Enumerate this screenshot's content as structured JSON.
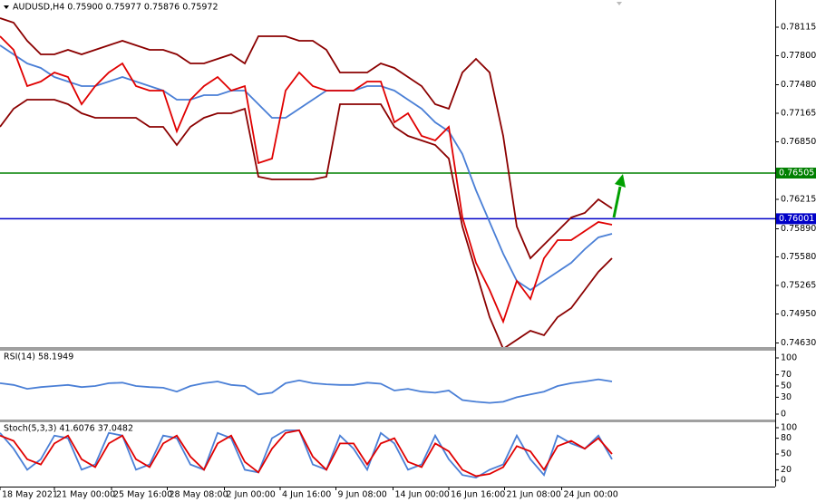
{
  "chart_data": [
    {
      "type": "line",
      "title": "AUDUSD,H4  0.75900 0.75977 0.75876 0.75972",
      "xlim": [
        0,
        57
      ],
      "ylim": [
        0.74585,
        0.78415
      ],
      "yticks": [
        0.78115,
        {
          "value": 0.778,
          "label": "0.77800"
        },
        {
          "value": 0.7748,
          "label": "0.77480"
        },
        0.77165,
        {
          "value": 0.7685,
          "label": "0.76850"
        },
        0.76215,
        {
          "value": 0.7589,
          "label": "0.75890"
        },
        {
          "value": 0.7558,
          "label": "0.75580"
        },
        0.75265,
        {
          "value": 0.7495,
          "label": "0.74950"
        },
        {
          "value": 0.7463,
          "label": "0.74630"
        }
      ],
      "levels": [
        {
          "value": 0.76505,
          "color": "#008000"
        },
        {
          "value": 0.76001,
          "color": "#0000c8"
        }
      ],
      "series": [
        {
          "color": "#8b0000",
          "values": [
            0.78215,
            0.78165,
            0.77965,
            0.77815,
            0.77815,
            0.77865,
            0.77815,
            0.77865,
            0.77915,
            0.77965,
            0.77915,
            0.77865,
            0.77865,
            0.77815,
            0.77715,
            0.77715,
            0.77765,
            0.77815,
            0.77715,
            0.78015,
            0.78015,
            0.78015,
            0.77965,
            0.77965,
            0.77865,
            0.77615,
            0.77615,
            0.77615,
            0.77715,
            0.77665,
            0.77565,
            0.77465,
            0.77265,
            0.77215,
            0.77615,
            0.77765,
            0.77615,
            0.76915,
            0.75915,
            0.75565,
            0.75715,
            0.75865,
            0.76015,
            0.76065,
            0.76215,
            0.76115
          ]
        },
        {
          "color": "#8b0000",
          "values": [
            0.77015,
            0.77215,
            0.77315,
            0.77315,
            0.77315,
            0.77265,
            0.77165,
            0.77115,
            0.77115,
            0.77115,
            0.77115,
            0.77015,
            0.77015,
            0.76815,
            0.77015,
            0.77115,
            0.77165,
            0.77165,
            0.77215,
            0.76465,
            0.76435,
            0.76435,
            0.76435,
            0.76435,
            0.76465,
            0.77265,
            0.77265,
            0.77265,
            0.77265,
            0.77015,
            0.76915,
            0.76865,
            0.76815,
            0.76665,
            0.75915,
            0.75415,
            0.74915,
            0.74565,
            0.74665,
            0.74765,
            0.74715,
            0.74915,
            0.75015,
            0.75215,
            0.75415,
            0.75565
          ]
        },
        {
          "color": "#4a7fd6",
          "values": [
            0.77915,
            0.77815,
            0.77715,
            0.77665,
            0.77565,
            0.77515,
            0.77465,
            0.77465,
            0.77515,
            0.77565,
            0.77515,
            0.77465,
            0.77415,
            0.77315,
            0.77315,
            0.77365,
            0.77365,
            0.77415,
            0.77415,
            0.77265,
            0.77115,
            0.77115,
            0.77215,
            0.77315,
            0.77415,
            0.77415,
            0.77415,
            0.77465,
            0.77465,
            0.77415,
            0.77315,
            0.77215,
            0.77065,
            0.76965,
            0.76715,
            0.76315,
            0.75965,
            0.75615,
            0.75315,
            0.75215,
            0.75315,
            0.75415,
            0.75515,
            0.75665,
            0.75795,
            0.75835
          ]
        },
        {
          "color": "#e00000",
          "values": [
            0.78015,
            0.77865,
            0.77465,
            0.77515,
            0.77615,
            0.77565,
            0.77265,
            0.77465,
            0.77615,
            0.77715,
            0.77465,
            0.77415,
            0.77415,
            0.76965,
            0.77315,
            0.77465,
            0.77565,
            0.77415,
            0.77465,
            0.76615,
            0.76665,
            0.77415,
            0.77615,
            0.77465,
            0.77415,
            0.77415,
            0.77415,
            0.77515,
            0.77515,
            0.77065,
            0.77165,
            0.76915,
            0.76865,
            0.77015,
            0.76015,
            0.75515,
            0.75215,
            0.74865,
            0.75315,
            0.75115,
            0.75565,
            0.75765,
            0.75765,
            0.75865,
            0.75965,
            0.75935
          ]
        }
      ]
    },
    {
      "type": "line",
      "title": "RSI(14) 58.1949",
      "xlim": [
        0,
        57
      ],
      "ylim": [
        0,
        100
      ],
      "yticks": [
        100,
        70,
        50,
        30,
        0
      ],
      "series": [
        {
          "color": "#4a7fd6",
          "values": [
            55,
            52,
            45,
            48,
            50,
            52,
            48,
            50,
            55,
            56,
            50,
            48,
            47,
            40,
            50,
            55,
            58,
            52,
            50,
            35,
            38,
            55,
            60,
            55,
            53,
            52,
            52,
            56,
            54,
            42,
            45,
            40,
            38,
            42,
            25,
            22,
            20,
            22,
            30,
            35,
            40,
            50,
            55,
            58,
            62,
            58
          ]
        }
      ]
    },
    {
      "type": "line",
      "title": "Stoch(5,3,3) 41.6076 37.0482",
      "xlim": [
        0,
        57
      ],
      "ylim": [
        0,
        100
      ],
      "yticks": [
        100,
        80,
        50,
        20,
        0
      ],
      "xticks": [
        {
          "value": 0,
          "label": "18 May 2021"
        },
        {
          "value": 4,
          "label": "21 May 00:00"
        },
        {
          "value": 8.2,
          "label": "25 May 16:00"
        },
        {
          "value": 12.3,
          "label": "28 May 08:00"
        },
        {
          "value": 16.5,
          "label": "2 Jun 00:00"
        },
        {
          "value": 20.6,
          "label": "4 Jun 16:00"
        },
        {
          "value": 24.7,
          "label": "9 Jun 08:00"
        },
        {
          "value": 28.9,
          "label": "14 Jun 00:00"
        },
        {
          "value": 33,
          "label": "16 Jun 16:00"
        },
        {
          "value": 37.1,
          "label": "21 Jun 08:00"
        },
        {
          "value": 41.3,
          "label": "24 Jun 00:00"
        }
      ],
      "series": [
        {
          "color": "#4a7fd6",
          "values": [
            90,
            60,
            20,
            40,
            85,
            80,
            20,
            30,
            90,
            85,
            20,
            30,
            85,
            80,
            30,
            20,
            90,
            80,
            20,
            15,
            80,
            95,
            95,
            30,
            20,
            85,
            60,
            20,
            90,
            70,
            20,
            30,
            85,
            40,
            10,
            5,
            20,
            30,
            85,
            40,
            10,
            85,
            70,
            60,
            85,
            40
          ]
        },
        {
          "color": "#e00000",
          "values": [
            85,
            75,
            40,
            30,
            70,
            85,
            40,
            25,
            70,
            85,
            40,
            25,
            70,
            85,
            45,
            20,
            70,
            85,
            35,
            15,
            60,
            90,
            95,
            45,
            20,
            70,
            70,
            30,
            70,
            80,
            35,
            25,
            70,
            55,
            20,
            8,
            12,
            25,
            65,
            55,
            20,
            65,
            75,
            60,
            80,
            50
          ]
        }
      ]
    }
  ]
}
